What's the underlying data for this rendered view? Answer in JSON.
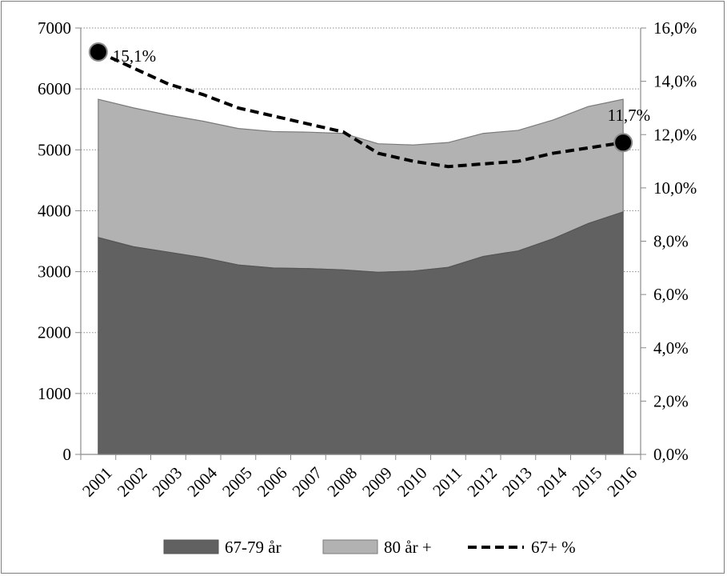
{
  "chart_data": {
    "type": "area",
    "categories": [
      "2001",
      "2002",
      "2003",
      "2004",
      "2005",
      "2006",
      "2007",
      "2008",
      "2009",
      "2010",
      "2011",
      "2012",
      "2013",
      "2014",
      "2015",
      "2016"
    ],
    "series": [
      {
        "name": "67-79 år",
        "kind": "area",
        "axis": "left",
        "color": "#616161",
        "values": [
          3560,
          3410,
          3320,
          3230,
          3110,
          3060,
          3050,
          3030,
          2990,
          3010,
          3070,
          3250,
          3340,
          3540,
          3790,
          3980
        ]
      },
      {
        "name": "80 år +",
        "kind": "area",
        "axis": "left",
        "color": "#b2b2b2",
        "values": [
          2270,
          2280,
          2250,
          2240,
          2240,
          2240,
          2240,
          2240,
          2110,
          2070,
          2050,
          2020,
          1980,
          1950,
          1920,
          1850
        ]
      },
      {
        "name": "67+ %",
        "kind": "line",
        "axis": "right",
        "color": "#000000",
        "values": [
          15.1,
          14.5,
          13.9,
          13.5,
          13.0,
          12.7,
          12.4,
          12.1,
          11.3,
          11.0,
          10.8,
          10.9,
          11.0,
          11.3,
          11.5,
          11.7
        ]
      }
    ],
    "annotations": [
      "15,1%",
      "11,7%"
    ],
    "y_left": {
      "min": 0,
      "max": 7000,
      "step": 1000,
      "ticks": [
        "0",
        "1000",
        "2000",
        "3000",
        "4000",
        "5000",
        "6000",
        "7000"
      ]
    },
    "y_right": {
      "min": 0,
      "max": 16,
      "step": 2,
      "ticks": [
        "0,0%",
        "2,0%",
        "4,0%",
        "6,0%",
        "8,0%",
        "10,0%",
        "12,0%",
        "14,0%",
        "16,0%"
      ]
    },
    "grid": true,
    "legend_position": "bottom",
    "title": "",
    "xlabel": "",
    "ylabel": ""
  }
}
